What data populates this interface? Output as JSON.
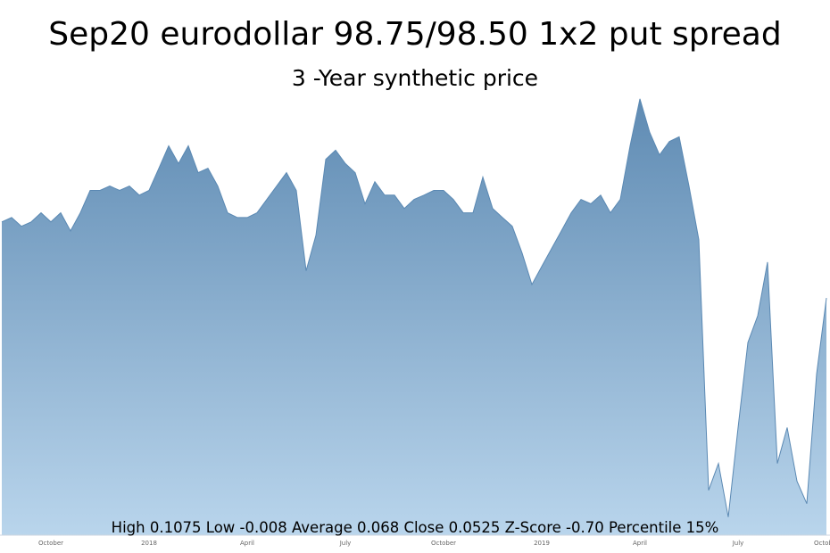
{
  "chart_data": {
    "type": "area",
    "title": "Sep20 eurodollar 98.75/98.50 1x2 put spread",
    "subtitle": "3 -Year synthetic price",
    "annotation": "High 0.1075 Low -0.008 Average 0.068 Close 0.0525  Z-Score -0.70 Percentile 15%",
    "color": "#5b89b3",
    "categories": [
      null,
      null,
      null,
      null,
      null,
      "October",
      null,
      null,
      null,
      null,
      null,
      null,
      null,
      null,
      null,
      "2018",
      null,
      null,
      null,
      null,
      null,
      null,
      null,
      null,
      null,
      "April",
      null,
      null,
      null,
      null,
      null,
      null,
      null,
      null,
      null,
      "July",
      null,
      null,
      null,
      null,
      null,
      null,
      null,
      null,
      null,
      "October",
      null,
      null,
      null,
      null,
      null,
      null,
      null,
      null,
      null,
      "2019",
      null,
      null,
      null,
      null,
      null,
      null,
      null,
      null,
      null,
      "April",
      null,
      null,
      null,
      null,
      null,
      null,
      null,
      null,
      null,
      "July",
      null,
      null,
      null,
      null,
      null,
      null,
      null,
      null,
      "October"
    ],
    "values": [
      0.0735,
      0.0747,
      0.0723,
      0.0735,
      0.076,
      0.0735,
      0.076,
      0.071,
      0.076,
      0.0822,
      0.0822,
      0.0834,
      0.0822,
      0.0834,
      0.0809,
      0.0822,
      0.0883,
      0.0945,
      0.0896,
      0.0945,
      0.0871,
      0.0883,
      0.0834,
      0.076,
      0.0747,
      0.0747,
      0.076,
      0.0797,
      0.0834,
      0.0871,
      0.0822,
      0.06,
      0.0698,
      0.0908,
      0.0933,
      0.0896,
      0.0871,
      0.0785,
      0.0846,
      0.0809,
      0.0809,
      0.0772,
      0.0797,
      0.0809,
      0.0822,
      0.0822,
      0.0797,
      0.076,
      0.076,
      0.0859,
      0.0772,
      0.0747,
      0.0723,
      0.0649,
      0.0562,
      0.0612,
      0.0661,
      0.071,
      0.076,
      0.0797,
      0.0785,
      0.0809,
      0.076,
      0.0797,
      0.0945,
      0.1075,
      0.0982,
      0.092,
      0.0957,
      0.097,
      0.0834,
      0.0686,
      -0.0006,
      0.0068,
      -0.008,
      0.0167,
      0.0402,
      0.0476,
      0.0624,
      0.0068,
      0.0167,
      0.0019,
      -0.0043,
      0.0315,
      0.0525
    ],
    "ylim": [
      -0.013,
      0.12
    ]
  }
}
